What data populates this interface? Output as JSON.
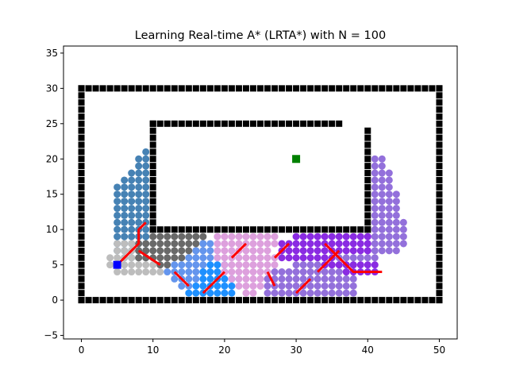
{
  "chart_data": {
    "type": "scatter",
    "title": "Learning Real-time A* (LRTA*) with N = 100",
    "xlabel": "",
    "ylabel": "",
    "xlim": [
      -2.5,
      52.5
    ],
    "ylim": [
      -5.5,
      36
    ],
    "xticks": [
      0,
      10,
      20,
      30,
      40,
      50
    ],
    "yticks": [
      -5,
      0,
      5,
      10,
      15,
      20,
      25,
      30,
      35
    ],
    "xtick_labels": [
      "0",
      "10",
      "20",
      "30",
      "40",
      "50"
    ],
    "ytick_labels": [
      "−5",
      "0",
      "5",
      "10",
      "15",
      "20",
      "25",
      "30",
      "35"
    ],
    "grid": false,
    "start": {
      "x": 5,
      "y": 5,
      "color": "#0000ff"
    },
    "goal": {
      "x": 30,
      "y": 20,
      "color": "#008000"
    },
    "obstacles": [
      {
        "from": [
          0,
          0
        ],
        "to": [
          50,
          0
        ]
      },
      {
        "from": [
          0,
          0
        ],
        "to": [
          0,
          30
        ]
      },
      {
        "from": [
          50,
          0
        ],
        "to": [
          50,
          30
        ]
      },
      {
        "from": [
          0,
          30
        ],
        "to": [
          50,
          30
        ]
      },
      {
        "from": [
          10,
          10
        ],
        "to": [
          40,
          10
        ]
      },
      {
        "from": [
          10,
          10
        ],
        "to": [
          10,
          25
        ]
      },
      {
        "from": [
          10,
          25
        ],
        "to": [
          36,
          25
        ]
      },
      {
        "from": [
          40,
          10
        ],
        "to": [
          40,
          24
        ]
      }
    ],
    "explored_regions": [
      {
        "color": "#4682b4",
        "y_range": [
          6,
          21
        ],
        "rows": {
          "6": [
            6,
            9
          ],
          "7": [
            5,
            9
          ],
          "8": [
            5,
            9
          ],
          "9": [
            5,
            9
          ],
          "10": [
            5,
            9
          ],
          "11": [
            5,
            9
          ],
          "12": [
            5,
            9
          ],
          "13": [
            5,
            9
          ],
          "14": [
            5,
            9
          ],
          "15": [
            5,
            9
          ],
          "16": [
            5,
            9
          ],
          "17": [
            6,
            9
          ],
          "18": [
            7,
            9
          ],
          "19": [
            8,
            9
          ],
          "20": [
            8,
            9
          ],
          "21": [
            9,
            9
          ]
        }
      },
      {
        "color": "#bdbdbd",
        "y_range": [
          4,
          8
        ],
        "rows": {
          "4": [
            5,
            11
          ],
          "5": [
            4,
            11
          ],
          "6": [
            4,
            9
          ],
          "7": [
            5,
            7
          ],
          "8": [
            5,
            7
          ]
        }
      },
      {
        "color": "#696969",
        "y_range": [
          5,
          9
        ],
        "rows": {
          "5": [
            11,
            12
          ],
          "6": [
            8,
            15
          ],
          "7": [
            8,
            16
          ],
          "8": [
            8,
            17
          ],
          "9": [
            10,
            17
          ]
        }
      },
      {
        "color": "#6495ed",
        "y_range": [
          2,
          8
        ],
        "rows": {
          "2": [
            14,
            15
          ],
          "3": [
            13,
            16
          ],
          "4": [
            12,
            17
          ],
          "5": [
            13,
            17
          ],
          "6": [
            15,
            18
          ],
          "7": [
            16,
            18
          ],
          "8": [
            17,
            18
          ]
        }
      },
      {
        "color": "#1e90ff",
        "y_range": [
          1,
          5
        ],
        "rows": {
          "1": [
            15,
            21
          ],
          "2": [
            16,
            21
          ],
          "3": [
            17,
            21
          ],
          "4": [
            17,
            20
          ],
          "5": [
            18,
            20
          ]
        }
      },
      {
        "color": "#dda0dd",
        "y_range": [
          1,
          9
        ],
        "rows": {
          "1": [
            23,
            24
          ],
          "2": [
            22,
            25
          ],
          "3": [
            21,
            25
          ],
          "4": [
            20,
            26
          ],
          "5": [
            20,
            27
          ],
          "6": [
            19,
            27
          ],
          "7": [
            19,
            26
          ],
          "8": [
            19,
            27
          ],
          "9": [
            19,
            27
          ]
        }
      },
      {
        "color": "#9370db",
        "y_range": [
          1,
          9
        ],
        "rows": {
          "1": [
            26,
            38
          ],
          "2": [
            26,
            38
          ],
          "3": [
            26,
            38
          ],
          "4": [
            27,
            37
          ],
          "5": [
            30,
            38
          ],
          "6": [
            36,
            41
          ],
          "7": [
            40,
            44
          ],
          "8": [
            40,
            45
          ],
          "9": [
            40,
            45
          ]
        }
      },
      {
        "color": "#8a2be2",
        "y_range": [
          4,
          9
        ],
        "rows": {
          "4": [
            37,
            41
          ],
          "5": [
            34,
            41
          ],
          "6": [
            28,
            35
          ],
          "7": [
            28,
            40
          ],
          "8": [
            28,
            40
          ],
          "9": [
            30,
            40
          ]
        }
      },
      {
        "color": "#9370db",
        "y_range": [
          10,
          20
        ],
        "rows": {
          "10": [
            41,
            45
          ],
          "11": [
            41,
            45
          ],
          "12": [
            41,
            44
          ],
          "13": [
            41,
            44
          ],
          "14": [
            41,
            44
          ],
          "15": [
            41,
            44
          ],
          "16": [
            41,
            43
          ],
          "17": [
            41,
            43
          ],
          "18": [
            41,
            43
          ],
          "19": [
            41,
            42
          ],
          "20": [
            41,
            42
          ]
        }
      }
    ],
    "path": {
      "color": "#ff0000",
      "segments": [
        [
          [
            5,
            5
          ],
          [
            7,
            7
          ],
          [
            8,
            8
          ],
          [
            8,
            10
          ],
          [
            9,
            11
          ]
        ],
        [
          [
            8,
            7
          ],
          [
            11,
            5
          ]
        ],
        [
          [
            13,
            4
          ],
          [
            15,
            2
          ]
        ],
        [
          [
            17,
            1
          ],
          [
            20,
            4
          ]
        ],
        [
          [
            21,
            6
          ],
          [
            23,
            8
          ]
        ],
        [
          [
            26,
            4
          ],
          [
            27,
            2
          ]
        ],
        [
          [
            27,
            6
          ],
          [
            29,
            8
          ]
        ],
        [
          [
            30,
            1
          ],
          [
            32,
            3
          ]
        ],
        [
          [
            33,
            4
          ],
          [
            36,
            7
          ]
        ],
        [
          [
            34,
            8
          ],
          [
            38,
            4
          ],
          [
            42,
            4
          ]
        ]
      ]
    }
  }
}
